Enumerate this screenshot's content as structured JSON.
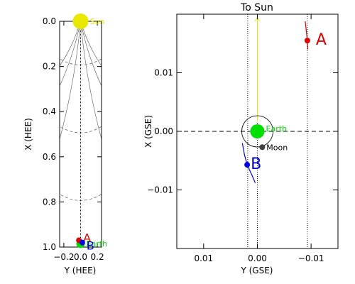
{
  "colors": {
    "sun": "#e8e800",
    "earth": "#00e000",
    "stereo_a": "#e00000",
    "stereo_b": "#0000e0",
    "moon": "#404040",
    "axis": "#000000",
    "guide": "#555555"
  },
  "chart_data": [
    {
      "type": "scatter",
      "title": "",
      "xlabel": "Y (HEE)",
      "ylabel": "X (HEE)",
      "xlim": [
        -0.25,
        0.25
      ],
      "ylim": [
        0.0,
        1.0
      ],
      "x_reversed": true,
      "y_inverted": true,
      "x_ticks": [
        -0.2,
        0.0,
        0.2
      ],
      "x_tick_labels": [
        "−0.2",
        "0.0",
        "0.2"
      ],
      "y_ticks": [
        0.0,
        0.2,
        0.4,
        0.6,
        0.8,
        1.0
      ],
      "y_tick_labels": [
        "0.0",
        "0.2",
        "0.4",
        "0.6",
        "0.8",
        "1.0"
      ],
      "grid": false,
      "bodies": [
        {
          "label": "Sun",
          "x": 0.0,
          "y": 0.0
        },
        {
          "label": "Earth",
          "x": 0.0,
          "y": 0.985
        },
        {
          "label": "A",
          "x": -0.02,
          "y": 0.97
        },
        {
          "label": "B",
          "x": 0.02,
          "y": 0.98
        }
      ]
    },
    {
      "type": "scatter",
      "title": "To Sun",
      "xlabel": "Y (GSE)",
      "ylabel": "X (GSE)",
      "xlim": [
        0.015,
        -0.015
      ],
      "ylim": [
        -0.02,
        0.02
      ],
      "x_ticks": [
        0.01,
        0.0,
        -0.01
      ],
      "x_tick_labels": [
        "0.01",
        "0.00",
        "−0.01"
      ],
      "y_ticks": [
        0.01,
        0.0,
        -0.01
      ],
      "y_tick_labels": [
        "0.01",
        "0.00",
        "−0.01"
      ],
      "grid": false,
      "bodies": [
        {
          "label": "Earth",
          "x": 0.0,
          "y": 0.0
        },
        {
          "label": "Moon",
          "x": -0.0009,
          "y": -0.0027
        },
        {
          "label": "A",
          "x": -0.0093,
          "y": 0.0155
        },
        {
          "label": "B",
          "x": 0.0019,
          "y": -0.0057
        }
      ],
      "tracks": [
        {
          "name": "A",
          "points": [
            [
              -0.0089,
              0.0188
            ],
            [
              -0.0091,
              0.0172
            ],
            [
              -0.0093,
              0.0155
            ],
            [
              -0.0094,
              0.014
            ]
          ]
        },
        {
          "name": "B",
          "points": [
            [
              0.0028,
              -0.002
            ],
            [
              0.0024,
              -0.004
            ],
            [
              0.0019,
              -0.0057
            ],
            [
              0.001,
              -0.0075
            ],
            [
              0.0004,
              -0.0088
            ]
          ]
        }
      ]
    }
  ]
}
